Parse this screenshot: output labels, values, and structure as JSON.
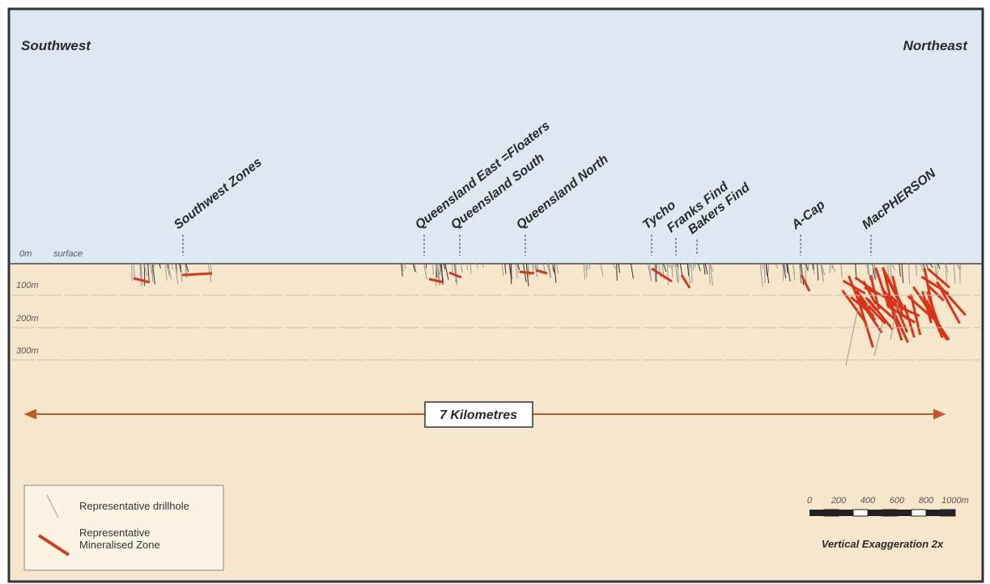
{
  "header": {
    "left": "Southwest",
    "right": "Northeast"
  },
  "deposits": [
    "Southwest Zones",
    "Queensland East =Floaters",
    "Queensland South",
    "Queensland North",
    "Tycho",
    "Franks Find",
    "Bakers Find",
    "A-Cap",
    "MacPHERSON"
  ],
  "depth_labels": [
    "0m",
    "100m",
    "200m",
    "300m"
  ],
  "surface_label": "surface",
  "distance_label": "7 Kilometres",
  "legend": {
    "drillhole": "Representative drillhole",
    "mineralised_zone": [
      "Representative",
      "Mineralised Zone"
    ]
  },
  "scale": {
    "ticks": [
      "0",
      "200",
      "400",
      "600",
      "800",
      "1000m"
    ],
    "note": "Vertical Exaggeration 2x"
  }
}
